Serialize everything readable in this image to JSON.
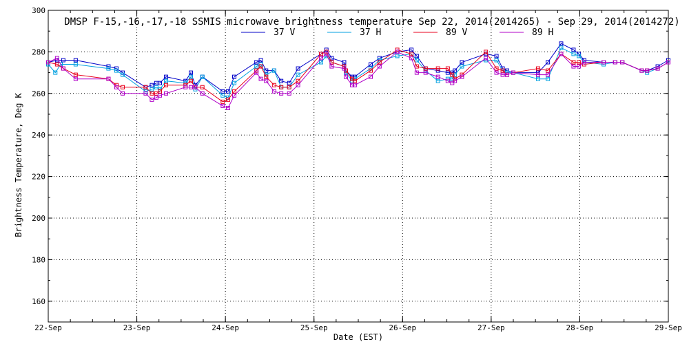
{
  "chart_data": {
    "type": "line",
    "title": "DMSP F-15,-16,-17,-18 SSMIS microwave brightness temperature Sep 22, 2014(2014265) - Sep 29, 2014(2014272)",
    "xlabel": "Date (EST)",
    "ylabel": "Brightness Temperature, Deg K",
    "xlim": [
      0,
      7
    ],
    "ylim": [
      150,
      300
    ],
    "x_ticks": [
      {
        "pos": 0,
        "label": "22-Sep"
      },
      {
        "pos": 1,
        "label": "23-Sep"
      },
      {
        "pos": 2,
        "label": "24-Sep"
      },
      {
        "pos": 3,
        "label": "25-Sep"
      },
      {
        "pos": 4,
        "label": "26-Sep"
      },
      {
        "pos": 5,
        "label": "27-Sep"
      },
      {
        "pos": 6,
        "label": "28-Sep"
      },
      {
        "pos": 7,
        "label": "29-Sep"
      }
    ],
    "y_ticks": [
      160,
      180,
      200,
      220,
      240,
      260,
      280,
      300
    ],
    "grid": true,
    "legend": "top-center",
    "series": [
      {
        "name": "37 V",
        "color": "#0000c8",
        "x": [
          0.0,
          0.1,
          0.17,
          0.31,
          0.68,
          0.77,
          0.84,
          1.1,
          1.17,
          1.22,
          1.26,
          1.33,
          1.55,
          1.61,
          1.66,
          1.74,
          1.97,
          2.03,
          2.1,
          2.35,
          2.4,
          2.46,
          2.55,
          2.63,
          2.72,
          2.82,
          3.08,
          3.14,
          3.2,
          3.34,
          3.36,
          3.43,
          3.46,
          3.64,
          3.74,
          3.94,
          4.1,
          4.16,
          4.26,
          4.4,
          4.51,
          4.56,
          4.59,
          4.67,
          4.94,
          5.06,
          5.13,
          5.18,
          5.25,
          5.53,
          5.64,
          5.79,
          5.93,
          5.99,
          6.05,
          6.27,
          6.4,
          6.48,
          6.7,
          6.76,
          6.88,
          7.0
        ],
        "values": [
          275,
          276,
          276,
          276,
          273,
          272,
          270,
          263,
          264,
          265,
          265,
          268,
          266,
          270,
          264,
          268,
          261,
          261,
          268,
          275,
          276,
          271,
          271,
          266,
          265,
          272,
          279,
          281,
          277,
          275,
          271,
          268,
          268,
          274,
          277,
          280,
          281,
          278,
          272,
          271,
          270,
          270,
          271,
          275,
          279,
          278,
          272,
          271,
          270,
          270,
          275,
          284,
          281,
          279,
          276,
          275,
          275,
          275,
          271,
          271,
          273,
          276
        ]
      },
      {
        "name": "37 H",
        "color": "#00a0e0",
        "x": [
          0.0,
          0.08,
          0.14,
          0.31,
          0.68,
          0.77,
          0.84,
          1.1,
          1.17,
          1.22,
          1.26,
          1.33,
          1.55,
          1.61,
          1.66,
          1.74,
          1.97,
          2.03,
          2.1,
          2.35,
          2.4,
          2.46,
          2.55,
          2.63,
          2.72,
          2.82,
          3.08,
          3.14,
          3.2,
          3.34,
          3.36,
          3.43,
          3.46,
          3.64,
          3.74,
          3.94,
          4.1,
          4.16,
          4.26,
          4.4,
          4.51,
          4.56,
          4.59,
          4.67,
          4.94,
          5.06,
          5.13,
          5.18,
          5.25,
          5.53,
          5.64,
          5.79,
          5.93,
          5.99,
          6.05,
          6.27,
          6.4,
          6.48,
          6.7,
          6.76,
          6.88,
          7.0
        ],
        "values": [
          274,
          270,
          274,
          274,
          272,
          271,
          269,
          261,
          262,
          263,
          262,
          266,
          265,
          268,
          262,
          268,
          259,
          258,
          265,
          273,
          274,
          269,
          271,
          263,
          263,
          269,
          275,
          278,
          275,
          273,
          270,
          266,
          267,
          272,
          276,
          278,
          279,
          276,
          271,
          266,
          267,
          267,
          269,
          273,
          276,
          276,
          271,
          270,
          270,
          267,
          267,
          282,
          279,
          278,
          275,
          274,
          275,
          275,
          271,
          270,
          272,
          275
        ]
      },
      {
        "name": "89 V",
        "color": "#e8001c",
        "x": [
          0.0,
          0.1,
          0.17,
          0.31,
          0.68,
          0.77,
          0.84,
          1.1,
          1.17,
          1.22,
          1.26,
          1.33,
          1.55,
          1.61,
          1.66,
          1.74,
          1.97,
          2.03,
          2.1,
          2.35,
          2.4,
          2.46,
          2.55,
          2.63,
          2.72,
          2.82,
          3.08,
          3.14,
          3.2,
          3.34,
          3.36,
          3.43,
          3.46,
          3.64,
          3.74,
          3.94,
          4.1,
          4.16,
          4.26,
          4.4,
          4.51,
          4.56,
          4.59,
          4.67,
          4.94,
          5.06,
          5.13,
          5.18,
          5.25,
          5.53,
          5.64,
          5.79,
          5.93,
          5.99,
          6.05,
          6.27,
          6.4,
          6.48,
          6.7,
          6.76,
          6.88,
          7.0
        ],
        "values": [
          275,
          274,
          272,
          269,
          267,
          264,
          263,
          263,
          260,
          260,
          261,
          264,
          264,
          266,
          263,
          263,
          256,
          257,
          261,
          271,
          273,
          268,
          264,
          263,
          263,
          266,
          279,
          280,
          275,
          273,
          271,
          267,
          266,
          271,
          275,
          281,
          279,
          273,
          272,
          272,
          272,
          269,
          267,
          269,
          280,
          272,
          271,
          269,
          270,
          272,
          271,
          279,
          275,
          275,
          274,
          275,
          275,
          275,
          271,
          271,
          272,
          275
        ]
      },
      {
        "name": "89 H",
        "color": "#b000c8",
        "x": [
          0.0,
          0.1,
          0.17,
          0.31,
          0.68,
          0.77,
          0.84,
          1.1,
          1.17,
          1.22,
          1.26,
          1.33,
          1.55,
          1.61,
          1.66,
          1.74,
          1.97,
          2.03,
          2.1,
          2.35,
          2.4,
          2.46,
          2.55,
          2.63,
          2.72,
          2.82,
          3.08,
          3.14,
          3.2,
          3.34,
          3.36,
          3.43,
          3.46,
          3.64,
          3.74,
          3.94,
          4.1,
          4.16,
          4.26,
          4.4,
          4.51,
          4.56,
          4.59,
          4.67,
          4.94,
          5.06,
          5.13,
          5.18,
          5.25,
          5.53,
          5.64,
          5.79,
          5.93,
          5.99,
          6.05,
          6.27,
          6.4,
          6.48,
          6.7,
          6.76,
          6.88,
          7.0
        ],
        "values": [
          275,
          277,
          272,
          267,
          267,
          263,
          260,
          260,
          257,
          258,
          259,
          260,
          263,
          263,
          263,
          260,
          254,
          253,
          259,
          270,
          267,
          266,
          261,
          260,
          260,
          264,
          277,
          279,
          273,
          272,
          268,
          264,
          264,
          268,
          273,
          280,
          277,
          270,
          270,
          268,
          266,
          265,
          266,
          268,
          277,
          270,
          269,
          269,
          270,
          269,
          269,
          279,
          273,
          273,
          275,
          275,
          275,
          275,
          271,
          271,
          272,
          275
        ]
      }
    ]
  }
}
